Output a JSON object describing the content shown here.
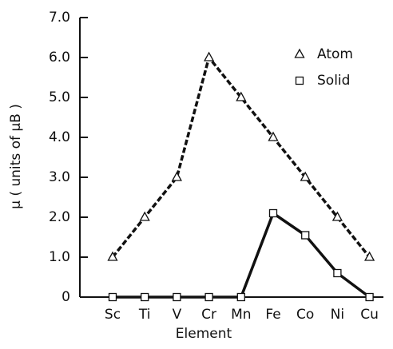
{
  "chart_data": {
    "type": "line",
    "xlabel": "Element",
    "ylabel": "μ ( units of μB )",
    "categories": [
      "Sc",
      "Ti",
      "V",
      "Cr",
      "Mn",
      "Fe",
      "Co",
      "Ni",
      "Cu"
    ],
    "series": [
      {
        "name": "Atom",
        "color": "#111111",
        "marker": "triangle",
        "linestyle": "dashed",
        "values": [
          1,
          2,
          3,
          6,
          5,
          4,
          3,
          2,
          1
        ]
      },
      {
        "name": "Solid",
        "color": "#111111",
        "marker": "square",
        "linestyle": "solid",
        "values": [
          0,
          0,
          0,
          0,
          0,
          2.1,
          1.55,
          0.6,
          0
        ]
      }
    ],
    "ylim": [
      0,
      7
    ],
    "yticks": [
      0,
      {
        "value": 1,
        "label": "1.0"
      },
      {
        "value": 2,
        "label": "2.0"
      },
      {
        "value": 3,
        "label": "3.0"
      },
      {
        "value": 4,
        "label": "4.0"
      },
      {
        "value": 5,
        "label": "5.0"
      },
      {
        "value": 6,
        "label": "6.0"
      },
      {
        "value": 7,
        "label": "7.0"
      }
    ],
    "legend": "top-right"
  }
}
